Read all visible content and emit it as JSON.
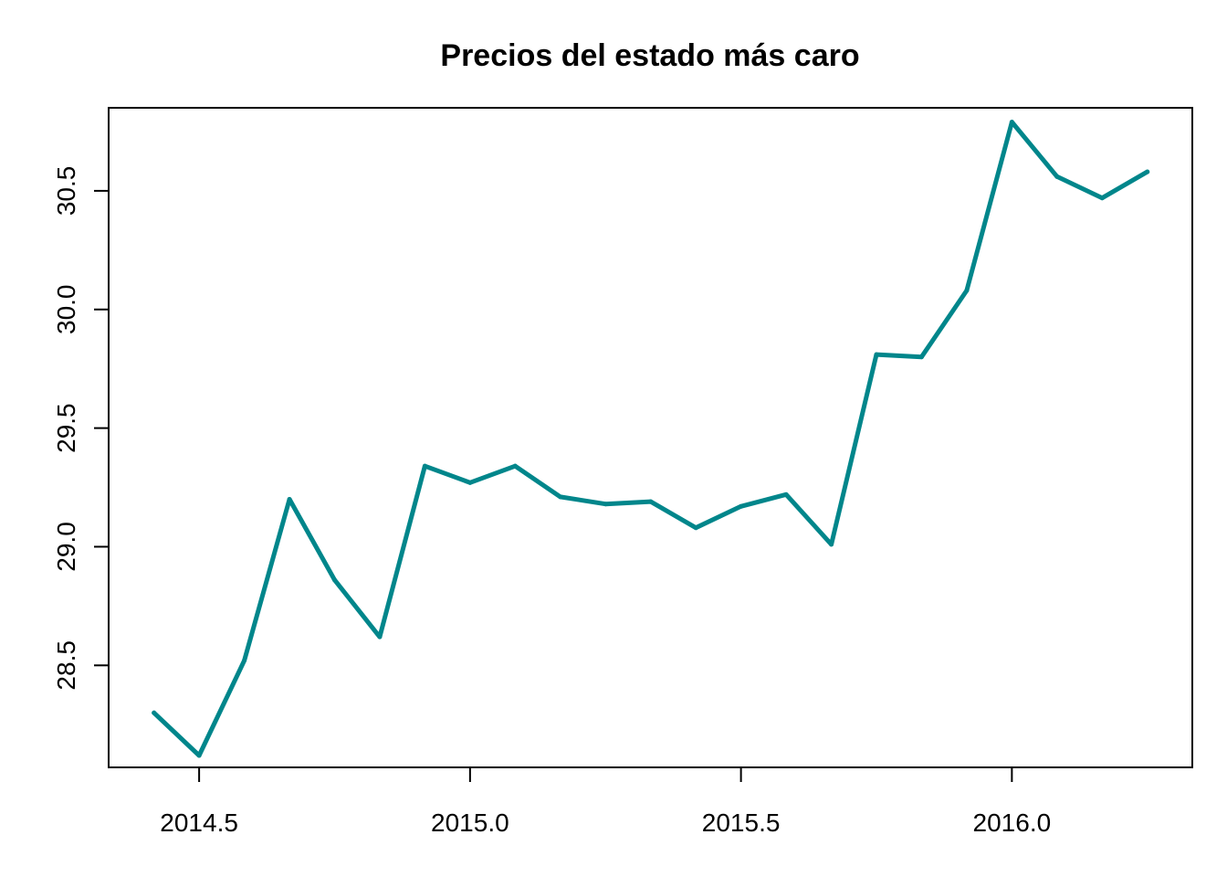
{
  "chart_data": {
    "type": "line",
    "title": "Precios del estado más caro",
    "xlabel": "",
    "ylabel": "",
    "xlim": [
      2014.333,
      2016.333
    ],
    "ylim": [
      28.07,
      30.85
    ],
    "x_ticks": [
      2014.5,
      2015.0,
      2015.5,
      2016.0
    ],
    "x_tick_labels": [
      "2014.5",
      "2015.0",
      "2015.5",
      "2016.0"
    ],
    "y_ticks": [
      28.5,
      29.0,
      29.5,
      30.0,
      30.5
    ],
    "y_tick_labels": [
      "28.5",
      "29.0",
      "29.5",
      "30.0",
      "30.5"
    ],
    "grid": false,
    "line_color": "#00868B",
    "series": [
      {
        "x": [
          2014.4167,
          2014.5,
          2014.5833,
          2014.6667,
          2014.75,
          2014.8333,
          2014.9167,
          2015.0,
          2015.0833,
          2015.1667,
          2015.25,
          2015.3333,
          2015.4167,
          2015.5,
          2015.5833,
          2015.6667,
          2015.75,
          2015.8333,
          2015.9167,
          2016.0,
          2016.0833,
          2016.1667,
          2016.25
        ],
        "values": [
          28.3,
          28.12,
          28.52,
          29.2,
          28.86,
          28.62,
          29.34,
          29.27,
          29.34,
          29.21,
          29.18,
          29.19,
          29.08,
          29.17,
          29.22,
          29.01,
          29.81,
          29.8,
          30.08,
          30.79,
          30.56,
          30.47,
          30.58
        ]
      }
    ]
  }
}
